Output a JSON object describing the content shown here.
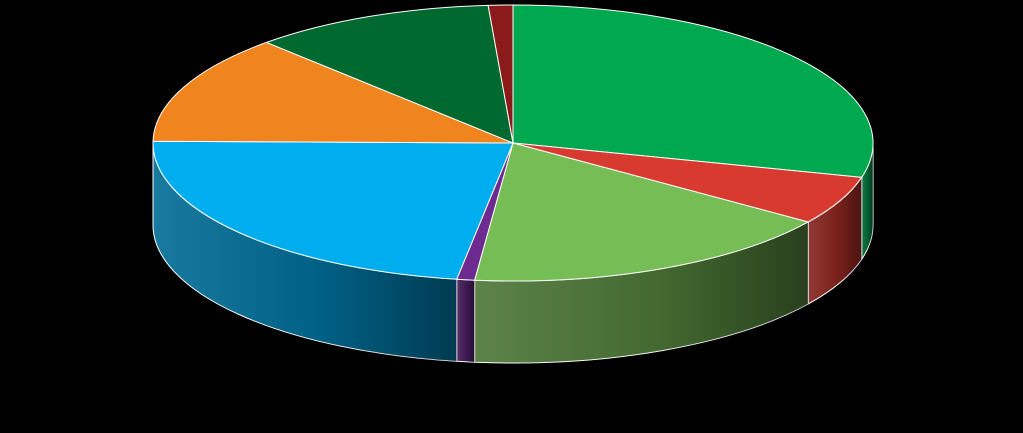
{
  "chart_data": {
    "type": "pie",
    "style": "3d",
    "start": "12 o'clock",
    "direction": "clockwise",
    "legend": "none",
    "data_labels": "none",
    "slices": [
      {
        "value": 29.0,
        "color": "#00a94f"
      },
      {
        "value": 5.7,
        "color": "#d93a30"
      },
      {
        "value": 17.0,
        "color": "#77bd56"
      },
      {
        "value": 0.8,
        "color": "#6d2a91"
      },
      {
        "value": 22.7,
        "color": "#00adef"
      },
      {
        "value": 12.8,
        "color": "#f08520"
      },
      {
        "value": 10.9,
        "color": "#006930"
      },
      {
        "value": 1.1,
        "color": "#8b1a1a"
      }
    ]
  }
}
